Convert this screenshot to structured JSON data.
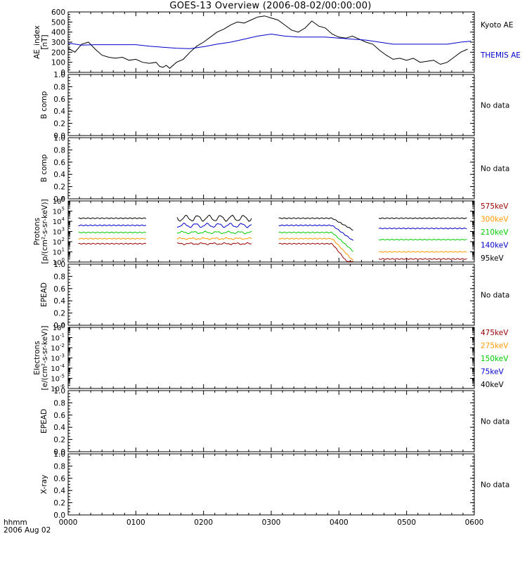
{
  "title": "GOES-13 Overview (2006-08-02/00:00:00)",
  "footer": {
    "line1": "hhmm",
    "line2": "2006 Aug 02"
  },
  "colors": {
    "black": "#000000",
    "blue": "#0000cc",
    "green": "#00cc00",
    "orange": "#ff9900",
    "darkred": "#990000"
  },
  "x_ticks": [
    "0000",
    "0100",
    "0200",
    "0300",
    "0400",
    "0500",
    "0600"
  ],
  "chart_data": [
    {
      "type": "line",
      "ylabel": [
        "AE_index",
        "[nT]"
      ],
      "ylim": [
        0,
        600
      ],
      "yticks": [
        0,
        100,
        200,
        300,
        400,
        500,
        600
      ],
      "legend": [
        {
          "name": "Kyoto AE",
          "color": "#000000"
        },
        {
          "name": "THEMIS AE",
          "color": "#0000cc"
        }
      ],
      "series": [
        {
          "name": "Kyoto AE",
          "color": "#000000",
          "x": [
            0,
            0.1,
            0.2,
            0.3,
            0.4,
            0.5,
            0.6,
            0.7,
            0.8,
            0.9,
            1.0,
            1.1,
            1.2,
            1.3,
            1.35,
            1.4,
            1.45,
            1.5,
            1.6,
            1.7,
            1.8,
            1.9,
            2.0,
            2.1,
            2.2,
            2.3,
            2.4,
            2.5,
            2.6,
            2.7,
            2.8,
            2.9,
            3.0,
            3.1,
            3.2,
            3.3,
            3.4,
            3.5,
            3.6,
            3.7,
            3.8,
            3.9,
            4.0,
            4.1,
            4.2,
            4.3,
            4.4,
            4.5,
            4.6,
            4.7,
            4.8,
            4.9,
            5.0,
            5.1,
            5.2,
            5.3,
            5.4,
            5.5,
            5.6,
            5.7,
            5.8,
            5.9
          ],
          "y": [
            240,
            200,
            280,
            300,
            230,
            170,
            150,
            140,
            150,
            120,
            130,
            100,
            90,
            100,
            60,
            50,
            70,
            40,
            100,
            130,
            200,
            260,
            300,
            350,
            400,
            430,
            470,
            500,
            490,
            520,
            550,
            560,
            540,
            520,
            470,
            420,
            400,
            440,
            510,
            460,
            440,
            380,
            350,
            340,
            360,
            330,
            300,
            280,
            220,
            170,
            130,
            140,
            120,
            140,
            100,
            110,
            120,
            80,
            100,
            150,
            200,
            230
          ]
        },
        {
          "name": "THEMIS AE",
          "color": "#0000cc",
          "x": [
            0,
            0.2,
            0.4,
            0.6,
            0.8,
            1.0,
            1.2,
            1.4,
            1.6,
            1.8,
            2.0,
            2.2,
            2.4,
            2.6,
            2.8,
            3.0,
            3.2,
            3.4,
            3.6,
            3.8,
            4.0,
            4.2,
            4.4,
            4.6,
            4.8,
            5.0,
            5.2,
            5.4,
            5.6,
            5.8,
            5.95
          ],
          "y": [
            290,
            270,
            275,
            275,
            275,
            275,
            260,
            250,
            240,
            235,
            255,
            280,
            300,
            330,
            360,
            380,
            360,
            350,
            350,
            350,
            340,
            330,
            320,
            300,
            280,
            280,
            280,
            280,
            280,
            300,
            310
          ]
        }
      ]
    },
    {
      "type": "line",
      "ylabel": [
        "B comp"
      ],
      "ylim": [
        0,
        1
      ],
      "yticks": [
        0,
        0.2,
        0.4,
        0.6,
        0.8,
        1.0
      ],
      "legend": [
        {
          "name": "No data",
          "color": "#000000"
        }
      ],
      "series": []
    },
    {
      "type": "line",
      "ylabel": [
        "B comp"
      ],
      "ylim": [
        0,
        1
      ],
      "yticks": [
        0,
        0.2,
        0.4,
        0.6,
        0.8,
        1.0
      ],
      "legend": [
        {
          "name": "No data",
          "color": "#000000"
        }
      ],
      "series": []
    },
    {
      "type": "line",
      "log_y": true,
      "ylabel": [
        "Protons",
        "[p/(cm²-s-sr-keV)]"
      ],
      "ylim_exp": [
        0,
        6
      ],
      "yticks_exp": [
        0,
        1,
        2,
        3,
        4,
        5,
        6
      ],
      "legend": [
        {
          "name": "575keV",
          "color": "#990000"
        },
        {
          "name": "300keV",
          "color": "#ff9900"
        },
        {
          "name": "210keV",
          "color": "#00cc00"
        },
        {
          "name": "140keV",
          "color": "#0000cc"
        },
        {
          "name": "95keV",
          "color": "#000000"
        }
      ],
      "gaps": [
        [
          1.16,
          1.6
        ],
        [
          2.72,
          3.1
        ],
        [
          4.22,
          4.58
        ]
      ],
      "series": [
        {
          "name": "95keV",
          "color": "#000000",
          "base_log10": 4.3,
          "drop": 0.0,
          "wiggle": 0.45
        },
        {
          "name": "140keV",
          "color": "#0000cc",
          "base_log10": 3.6,
          "drop": 0.3,
          "wiggle": 0.3
        },
        {
          "name": "210keV",
          "color": "#00cc00",
          "base_log10": 2.9,
          "drop": 0.7,
          "wiggle": 0.15
        },
        {
          "name": "300keV",
          "color": "#ff9900",
          "base_log10": 2.3,
          "drop": 1.3,
          "wiggle": 0.1
        },
        {
          "name": "575keV",
          "color": "#990000",
          "base_log10": 1.8,
          "drop": 1.5,
          "wiggle": 0.1
        }
      ]
    },
    {
      "type": "line",
      "ylabel": [
        "EPEAD"
      ],
      "ylim": [
        0,
        1
      ],
      "yticks": [
        0,
        0.2,
        0.4,
        0.6,
        0.8,
        1.0
      ],
      "legend": [
        {
          "name": "No data",
          "color": "#000000"
        }
      ],
      "series": []
    },
    {
      "type": "line",
      "log_y": true,
      "ylabel": [
        "Electrons",
        "[e/(cm²-s-sr-keV)]"
      ],
      "ylim_exp": [
        -6,
        0
      ],
      "yticks_exp": [
        -6,
        -5,
        -4,
        -3,
        -2,
        -1,
        0
      ],
      "legend": [
        {
          "name": "475keV",
          "color": "#990000"
        },
        {
          "name": "275keV",
          "color": "#ff9900"
        },
        {
          "name": "150keV",
          "color": "#00cc00"
        },
        {
          "name": "75keV",
          "color": "#0000cc"
        },
        {
          "name": "40keV",
          "color": "#000000"
        }
      ],
      "series": []
    },
    {
      "type": "line",
      "ylabel": [
        "EPEAD"
      ],
      "ylim": [
        0,
        1
      ],
      "yticks": [
        0,
        0.2,
        0.4,
        0.6,
        0.8,
        1.0
      ],
      "legend": [
        {
          "name": "No data",
          "color": "#000000"
        }
      ],
      "series": []
    },
    {
      "type": "line",
      "ylabel": [
        "X-ray"
      ],
      "ylim": [
        0,
        1
      ],
      "yticks": [
        0,
        0.2,
        0.4,
        0.6,
        0.8,
        1.0
      ],
      "legend": [
        {
          "name": "No data",
          "color": "#000000"
        }
      ],
      "series": []
    }
  ]
}
